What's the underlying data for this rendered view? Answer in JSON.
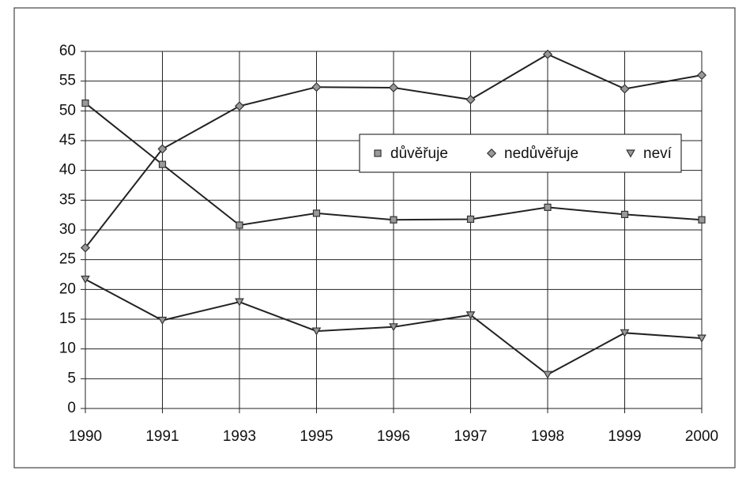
{
  "chart_data": {
    "type": "line",
    "categories": [
      "1990",
      "1991",
      "1993",
      "1995",
      "1996",
      "1997",
      "1998",
      "1999",
      "2000"
    ],
    "series": [
      {
        "name": "důvěřuje",
        "color": "#222222",
        "marker": "square",
        "values": [
          51.3,
          41,
          30.8,
          32.8,
          31.7,
          31.8,
          33.8,
          32.6,
          31.7
        ]
      },
      {
        "name": "nedůvěřuje",
        "color": "#222222",
        "marker": "diamond",
        "values": [
          27,
          43.6,
          50.8,
          54,
          53.9,
          51.9,
          59.5,
          53.7,
          56
        ]
      },
      {
        "name": "neví",
        "color": "#222222",
        "marker": "triangle-down",
        "values": [
          21.7,
          14.8,
          17.9,
          13,
          13.7,
          15.7,
          5.7,
          12.7,
          11.8
        ]
      }
    ],
    "ylim": [
      0,
      60
    ],
    "yticks": [
      0,
      5,
      10,
      15,
      20,
      25,
      30,
      35,
      40,
      45,
      50,
      55,
      60
    ],
    "grid": true,
    "legend": "right"
  }
}
